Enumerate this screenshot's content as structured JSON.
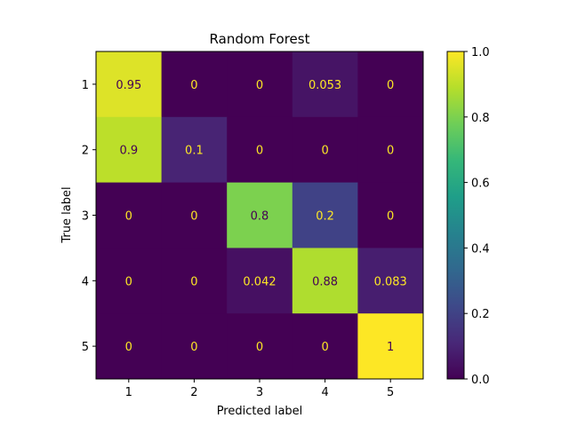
{
  "chart_data": {
    "type": "heatmap",
    "title": "Random Forest",
    "xlabel": "Predicted label",
    "ylabel": "True label",
    "x_categories": [
      "1",
      "2",
      "3",
      "4",
      "5"
    ],
    "y_categories": [
      "1",
      "2",
      "3",
      "4",
      "5"
    ],
    "values": [
      [
        0.95,
        0,
        0,
        0.053,
        0
      ],
      [
        0.9,
        0.1,
        0,
        0,
        0
      ],
      [
        0,
        0,
        0.8,
        0.2,
        0
      ],
      [
        0,
        0,
        0.042,
        0.88,
        0.083
      ],
      [
        0,
        0,
        0,
        0,
        1
      ]
    ],
    "value_labels": [
      [
        "0.95",
        "0",
        "0",
        "0.053",
        "0"
      ],
      [
        "0.9",
        "0.1",
        "0",
        "0",
        "0"
      ],
      [
        "0",
        "0",
        "0.8",
        "0.2",
        "0"
      ],
      [
        "0",
        "0",
        "0.042",
        "0.88",
        "0.083"
      ],
      [
        "0",
        "0",
        "0",
        "0",
        "1"
      ]
    ],
    "colormap": "viridis",
    "colorbar": {
      "range": [
        0.0,
        1.0
      ],
      "ticks": [
        0.0,
        0.2,
        0.4,
        0.6,
        0.8,
        1.0
      ],
      "tick_labels": [
        "0.0",
        "0.2",
        "0.4",
        "0.6",
        "0.8",
        "1.0"
      ]
    },
    "label_colors": {
      "on_dark": "#fde725",
      "on_light": "#440154"
    }
  }
}
